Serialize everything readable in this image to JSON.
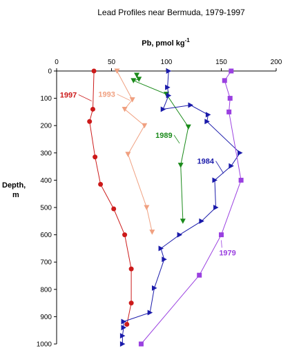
{
  "chart_data": {
    "type": "line",
    "title": "Lead Profiles near Bermuda, 1979-1997",
    "xlabel": "Pb, pmol kg",
    "xlabel_superscript": "-1",
    "ylabel_line1": "Depth,",
    "ylabel_line2": "m",
    "xlim": [
      0,
      200
    ],
    "ylim": [
      0,
      1000
    ],
    "x_axis_position": "top",
    "y_inverted": true,
    "grid": false,
    "x_ticks": [
      0,
      50,
      100,
      150,
      200
    ],
    "y_ticks": [
      0,
      100,
      200,
      300,
      400,
      500,
      600,
      700,
      800,
      900,
      1000
    ],
    "series": [
      {
        "name": "1997",
        "color": "#cc1a1a",
        "marker": "circle",
        "points": [
          [
            34,
            0
          ],
          [
            33,
            140
          ],
          [
            30,
            185
          ],
          [
            35,
            315
          ],
          [
            40,
            415
          ],
          [
            52,
            505
          ],
          [
            62,
            600
          ],
          [
            68,
            725
          ],
          [
            68,
            850
          ],
          [
            64,
            928
          ]
        ]
      },
      {
        "name": "1993",
        "color": "#f0a080",
        "marker": "triangle-down",
        "points": [
          [
            55,
            0
          ],
          [
            69,
            105
          ],
          [
            62,
            140
          ],
          [
            80,
            200
          ],
          [
            65,
            305
          ],
          [
            82,
            500
          ],
          [
            87,
            590
          ]
        ]
      },
      {
        "name": "1989",
        "color": "#1a8a1a",
        "marker": "triangle-down",
        "points": [
          [
            73,
            15
          ],
          [
            75,
            30
          ],
          [
            70,
            35
          ],
          [
            100,
            85
          ],
          [
            120,
            205
          ],
          [
            113,
            345
          ],
          [
            115,
            550
          ]
        ]
      },
      {
        "name": "1984",
        "color": "#1a1aaa",
        "marker": "triangle-right",
        "points": [
          [
            102,
            0
          ],
          [
            101,
            60
          ],
          [
            102,
            90
          ],
          [
            97,
            140
          ],
          [
            122,
            125
          ],
          [
            138,
            160
          ],
          [
            137,
            185
          ],
          [
            167,
            300
          ],
          [
            159,
            348
          ],
          [
            144,
            400
          ],
          [
            145,
            500
          ],
          [
            132,
            550
          ],
          [
            112,
            600
          ],
          [
            95,
            650
          ],
          [
            98,
            690
          ],
          [
            89,
            795
          ],
          [
            85,
            885
          ],
          [
            61,
            918
          ],
          [
            61,
            940
          ],
          [
            60,
            970
          ],
          [
            60,
            1000
          ]
        ]
      },
      {
        "name": "1979",
        "color": "#9a40e0",
        "marker": "square",
        "points": [
          [
            159,
            0
          ],
          [
            153,
            35
          ],
          [
            158,
            100
          ],
          [
            157,
            150
          ],
          [
            168,
            400
          ],
          [
            150,
            600
          ],
          [
            130,
            748
          ],
          [
            77,
            1000
          ]
        ]
      }
    ],
    "annotations": [
      {
        "text": "1997",
        "series": "1997",
        "label_at": [
          3,
          97
        ],
        "arrow_to": [
          32,
          110
        ]
      },
      {
        "text": "1993",
        "series": "1993",
        "label_at": [
          38,
          95
        ],
        "arrow_to": [
          67,
          108
        ]
      },
      {
        "text": "1989",
        "series": "1989",
        "label_at": [
          90,
          245
        ],
        "arrow_to": [
          112,
          265
        ]
      },
      {
        "text": "1984",
        "series": "1984",
        "label_at": [
          128,
          340
        ],
        "arrow_to": [
          152,
          375
        ]
      },
      {
        "text": "1979",
        "series": "1979",
        "label_at": [
          148,
          675
        ],
        "arrow_to": [
          150,
          620
        ]
      }
    ]
  }
}
